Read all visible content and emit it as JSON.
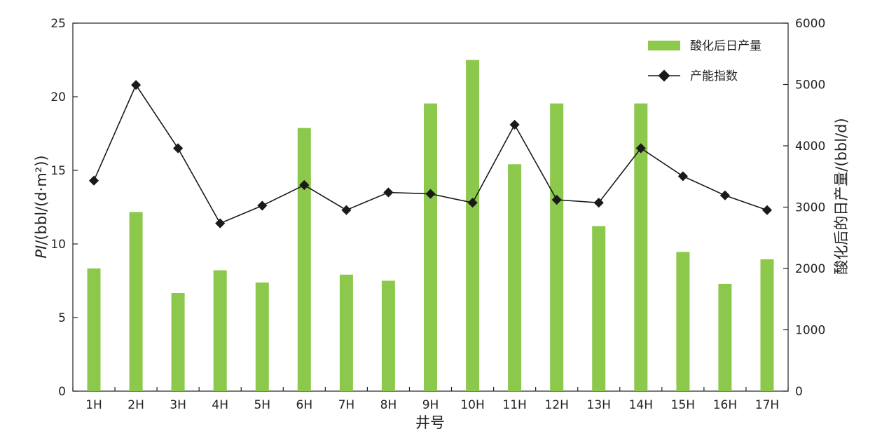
{
  "chart_data": {
    "type": "bar+line",
    "categories": [
      "1H",
      "2H",
      "3H",
      "4H",
      "5H",
      "6H",
      "7H",
      "8H",
      "9H",
      "10H",
      "11H",
      "12H",
      "13H",
      "14H",
      "15H",
      "16H",
      "17H"
    ],
    "series": [
      {
        "name": "酸化后日产量",
        "type": "bar",
        "axis": "right",
        "color": "#8cc84b",
        "values": [
          2000,
          2920,
          1600,
          1970,
          1770,
          4290,
          1900,
          1800,
          4690,
          5400,
          3700,
          4690,
          2690,
          4690,
          2270,
          1750,
          2150
        ]
      },
      {
        "name": "产能指数",
        "type": "line",
        "axis": "left",
        "color": "#1a1a1a",
        "values": [
          14.3,
          20.8,
          16.5,
          11.4,
          12.6,
          14.0,
          12.3,
          13.5,
          13.4,
          12.8,
          18.1,
          13.0,
          12.8,
          16.5,
          14.6,
          13.3,
          12.3
        ]
      }
    ],
    "xlabel": "井号",
    "ylabel_left_italic": "PI",
    "ylabel_left_rest": "/(bbl/(d·m²))",
    "ylabel_right": "酸化后的日产量/(bbl/d)",
    "ylim_left": [
      0,
      25
    ],
    "yticks_left": [
      "0",
      "5",
      "10",
      "15",
      "20",
      "25"
    ],
    "ylim_right": [
      0,
      6000
    ],
    "yticks_right": [
      "0",
      "1000",
      "2000",
      "3000",
      "4000",
      "5000",
      "6000"
    ],
    "legend_position": "top-right",
    "grid": false
  }
}
